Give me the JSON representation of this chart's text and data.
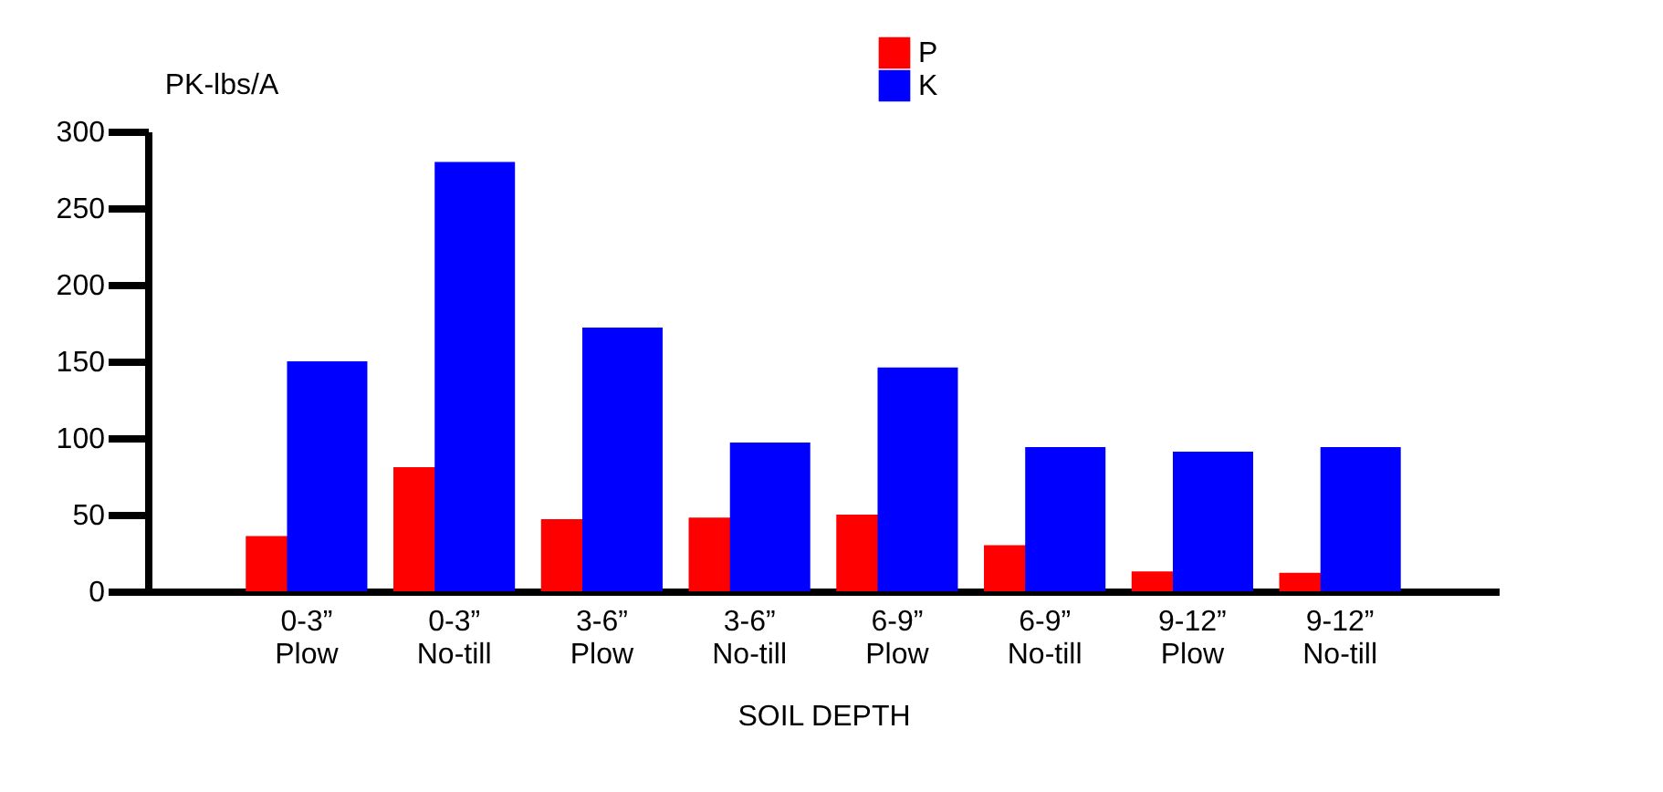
{
  "chart_data": {
    "type": "bar",
    "xlabel": "SOIL DEPTH",
    "ylabel": "PK-lbs/A",
    "categories": [
      "0-3” Plow",
      "0-3” No-till",
      "3-6” Plow",
      "3-6” No-till",
      "6-9” Plow",
      "6-9” No-till",
      "9-12” Plow",
      "9-12” No-till"
    ],
    "series": [
      {
        "name": "P",
        "color": "#ff0000",
        "values": [
          36,
          81,
          47,
          48,
          50,
          30,
          13,
          12
        ]
      },
      {
        "name": "K",
        "color": "#0000ff",
        "values": [
          150,
          280,
          172,
          97,
          146,
          94,
          91,
          94
        ]
      }
    ],
    "ylim": [
      0,
      300
    ],
    "yticks": [
      0,
      50,
      100,
      150,
      200,
      250,
      300
    ],
    "grid": false,
    "legend": "top"
  }
}
